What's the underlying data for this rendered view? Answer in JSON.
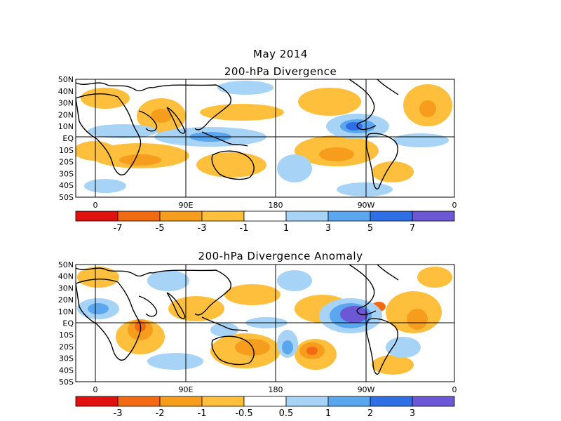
{
  "header": {
    "date": "May 2014"
  },
  "panels": [
    {
      "title": "200-hPa Divergence",
      "lat_labels": [
        "50N",
        "40N",
        "30N",
        "20N",
        "10N",
        "EQ",
        "10S",
        "20S",
        "30S",
        "40S",
        "50S"
      ],
      "lon_labels": [
        "0",
        "90E",
        "180",
        "90W",
        "0"
      ],
      "colorbar": {
        "colors": [
          "#e0110f",
          "#f26a12",
          "#f79d1d",
          "#fdbf3c",
          "#ffffff",
          "#a6d3f6",
          "#5aa6ef",
          "#2f6fe6",
          "#6c57d5"
        ],
        "labels": [
          "-7",
          "-5",
          "-3",
          "-1",
          "1",
          "3",
          "5",
          "7"
        ]
      }
    },
    {
      "title": "200-hPa Divergence Anomaly",
      "lat_labels": [
        "50N",
        "40N",
        "30N",
        "20N",
        "10N",
        "EQ",
        "10S",
        "20S",
        "30S",
        "40S",
        "50S"
      ],
      "lon_labels": [
        "0",
        "90E",
        "180",
        "90W",
        "0"
      ],
      "colorbar": {
        "colors": [
          "#e0110f",
          "#f26a12",
          "#f79d1d",
          "#fdbf3c",
          "#ffffff",
          "#a6d3f6",
          "#5aa6ef",
          "#2f6fe6",
          "#6c57d5"
        ],
        "labels": [
          "-3",
          "-2",
          "-1",
          "-0.5",
          "0.5",
          "1",
          "2",
          "3"
        ]
      }
    }
  ]
}
